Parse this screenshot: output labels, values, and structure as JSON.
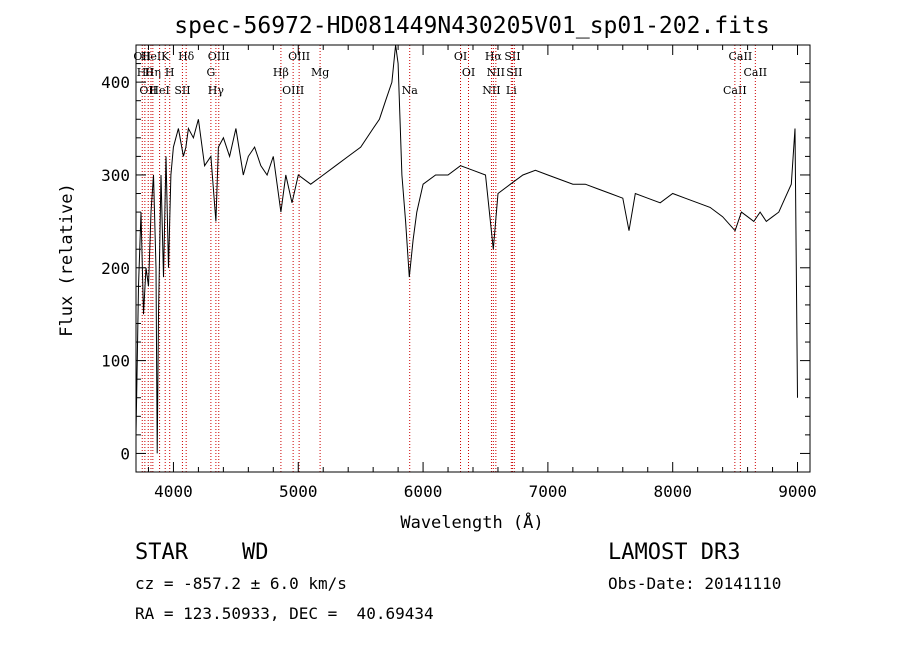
{
  "chart_data": {
    "type": "line",
    "title": "spec-56972-HD081449N430205V01_sp01-202.fits",
    "xlabel": "Wavelength (Å)",
    "ylabel": "Flux (relative)",
    "xlim": [
      3700,
      9100
    ],
    "ylim": [
      -20,
      440
    ],
    "xticks": [
      4000,
      5000,
      6000,
      7000,
      8000,
      9000
    ],
    "yticks": [
      0,
      100,
      200,
      300,
      400
    ],
    "grid": false,
    "line_color": "#000000",
    "marker_color": "#cc0000",
    "series": [
      {
        "name": "flux",
        "x": [
          3700,
          3720,
          3740,
          3760,
          3780,
          3800,
          3820,
          3840,
          3860,
          3870,
          3880,
          3900,
          3920,
          3940,
          3960,
          3980,
          4000,
          4040,
          4080,
          4100,
          4120,
          4160,
          4200,
          4250,
          4300,
          4340,
          4360,
          4400,
          4450,
          4500,
          4560,
          4600,
          4650,
          4700,
          4750,
          4800,
          4861,
          4900,
          4950,
          5000,
          5100,
          5200,
          5300,
          5400,
          5500,
          5600,
          5650,
          5700,
          5750,
          5780,
          5800,
          5830,
          5860,
          5890,
          5920,
          5950,
          6000,
          6100,
          6200,
          6300,
          6400,
          6500,
          6563,
          6600,
          6700,
          6800,
          6900,
          7000,
          7100,
          7200,
          7300,
          7400,
          7500,
          7600,
          7650,
          7700,
          7800,
          7900,
          8000,
          8100,
          8200,
          8300,
          8400,
          8500,
          8550,
          8600,
          8650,
          8700,
          8750,
          8800,
          8850,
          8900,
          8950,
          8980,
          9000
        ],
        "y": [
          20,
          180,
          260,
          150,
          200,
          180,
          260,
          300,
          200,
          0,
          150,
          300,
          190,
          320,
          200,
          300,
          330,
          350,
          320,
          330,
          350,
          340,
          360,
          310,
          320,
          250,
          330,
          340,
          320,
          350,
          300,
          320,
          330,
          310,
          300,
          320,
          260,
          300,
          270,
          300,
          290,
          300,
          310,
          320,
          330,
          350,
          360,
          380,
          400,
          440,
          420,
          300,
          250,
          190,
          230,
          260,
          290,
          300,
          300,
          310,
          305,
          300,
          220,
          280,
          290,
          300,
          305,
          300,
          295,
          290,
          290,
          285,
          280,
          275,
          240,
          280,
          275,
          270,
          280,
          275,
          270,
          265,
          255,
          240,
          260,
          255,
          250,
          260,
          250,
          255,
          260,
          275,
          290,
          350,
          60
        ]
      }
    ],
    "markers": [
      {
        "wavelength": 3750,
        "label": "OII"
      },
      {
        "wavelength": 3771,
        "label": "Hθ"
      },
      {
        "wavelength": 3798,
        "label": "OII"
      },
      {
        "wavelength": 3820,
        "label": "HeI"
      },
      {
        "wavelength": 3835,
        "label": "Hη"
      },
      {
        "wavelength": 3889,
        "label": "HeI"
      },
      {
        "wavelength": 3934,
        "label": "K"
      },
      {
        "wavelength": 3970,
        "label": "H"
      },
      {
        "wavelength": 4072,
        "label": "SII"
      },
      {
        "wavelength": 4102,
        "label": "Hδ"
      },
      {
        "wavelength": 4300,
        "label": "G"
      },
      {
        "wavelength": 4340,
        "label": "Hγ"
      },
      {
        "wavelength": 4363,
        "label": "OIII"
      },
      {
        "wavelength": 4861,
        "label": "Hβ"
      },
      {
        "wavelength": 4959,
        "label": "OIII"
      },
      {
        "wavelength": 5007,
        "label": "OIII"
      },
      {
        "wavelength": 5175,
        "label": "Mg"
      },
      {
        "wavelength": 5893,
        "label": "Na"
      },
      {
        "wavelength": 6300,
        "label": "OI"
      },
      {
        "wavelength": 6364,
        "label": "OI"
      },
      {
        "wavelength": 6548,
        "label": "NII"
      },
      {
        "wavelength": 6563,
        "label": "Hα"
      },
      {
        "wavelength": 6583,
        "label": "NII"
      },
      {
        "wavelength": 6707,
        "label": "Li"
      },
      {
        "wavelength": 6716,
        "label": "SII"
      },
      {
        "wavelength": 6731,
        "label": "SII"
      },
      {
        "wavelength": 8498,
        "label": "CaII"
      },
      {
        "wavelength": 8542,
        "label": "CaII"
      },
      {
        "wavelength": 8662,
        "label": "CaII"
      }
    ]
  },
  "info": {
    "object_class": "STAR",
    "subclass": "WD",
    "survey": "LAMOST DR3",
    "redshift_line": "cz = -857.2 ± 6.0 km/s",
    "obs_date": "Obs-Date: 20141110",
    "coords": "RA = 123.50933, DEC =  40.69434"
  }
}
